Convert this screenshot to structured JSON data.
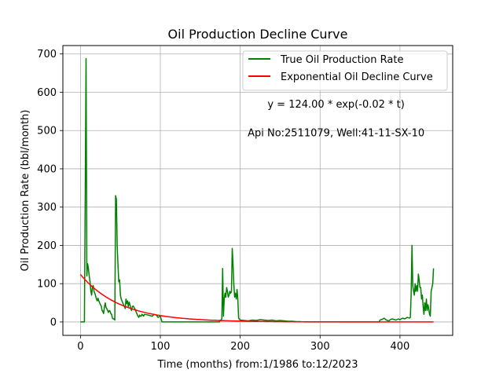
{
  "chart_data": {
    "type": "line",
    "title": "Oil Production Decline Curve",
    "xlabel": "Time (months) from:1/1986 to:12/2023",
    "ylabel": "Oil Production Rate (bbl/month)",
    "xlim": [
      -22,
      466
    ],
    "ylim": [
      -35,
      722
    ],
    "xticks": [
      0,
      100,
      200,
      300,
      400
    ],
    "yticks": [
      0,
      100,
      200,
      300,
      400,
      500,
      600,
      700
    ],
    "grid": true,
    "legend_position": "top-right",
    "annotations": [
      {
        "text": "y = 124.00 * exp(-0.02 * t)",
        "x": 320,
        "y": 570
      },
      {
        "text": "Api No:2511079, Well:41-11-SX-10",
        "x": 320,
        "y": 495
      }
    ],
    "series": [
      {
        "name": "True Oil Production Rate",
        "color": "#008000",
        "points": [
          [
            0,
            0
          ],
          [
            4,
            0
          ],
          [
            5,
            0
          ],
          [
            6,
            350
          ],
          [
            7,
            688
          ],
          [
            8,
            120
          ],
          [
            9,
            152
          ],
          [
            10,
            140
          ],
          [
            11,
            120
          ],
          [
            12,
            105
          ],
          [
            13,
            80
          ],
          [
            14,
            70
          ],
          [
            15,
            92
          ],
          [
            16,
            95
          ],
          [
            17,
            80
          ],
          [
            18,
            75
          ],
          [
            19,
            68
          ],
          [
            20,
            60
          ],
          [
            21,
            55
          ],
          [
            22,
            62
          ],
          [
            23,
            55
          ],
          [
            24,
            50
          ],
          [
            25,
            45
          ],
          [
            26,
            42
          ],
          [
            27,
            30
          ],
          [
            28,
            28
          ],
          [
            29,
            22
          ],
          [
            30,
            40
          ],
          [
            31,
            50
          ],
          [
            32,
            38
          ],
          [
            33,
            35
          ],
          [
            34,
            30
          ],
          [
            35,
            25
          ],
          [
            36,
            30
          ],
          [
            37,
            28
          ],
          [
            38,
            22
          ],
          [
            39,
            20
          ],
          [
            40,
            10
          ],
          [
            41,
            8
          ],
          [
            42,
            8
          ],
          [
            43,
            5
          ],
          [
            44,
            330
          ],
          [
            45,
            320
          ],
          [
            46,
            200
          ],
          [
            47,
            150
          ],
          [
            48,
            105
          ],
          [
            49,
            110
          ],
          [
            50,
            70
          ],
          [
            51,
            60
          ],
          [
            52,
            55
          ],
          [
            53,
            50
          ],
          [
            54,
            45
          ],
          [
            55,
            40
          ],
          [
            56,
            35
          ],
          [
            57,
            60
          ],
          [
            58,
            48
          ],
          [
            59,
            55
          ],
          [
            60,
            40
          ],
          [
            61,
            52
          ],
          [
            62,
            45
          ],
          [
            63,
            35
          ],
          [
            64,
            30
          ],
          [
            65,
            40
          ],
          [
            66,
            42
          ],
          [
            67,
            38
          ],
          [
            68,
            35
          ],
          [
            69,
            30
          ],
          [
            70,
            25
          ],
          [
            71,
            20
          ],
          [
            72,
            15
          ],
          [
            73,
            12
          ],
          [
            74,
            18
          ],
          [
            75,
            15
          ],
          [
            76,
            15
          ],
          [
            77,
            20
          ],
          [
            78,
            18
          ],
          [
            79,
            15
          ],
          [
            80,
            20
          ],
          [
            85,
            18
          ],
          [
            90,
            15
          ],
          [
            92,
            20
          ],
          [
            95,
            18
          ],
          [
            97,
            12
          ],
          [
            100,
            15
          ],
          [
            102,
            0
          ],
          [
            105,
            0
          ],
          [
            150,
            0
          ],
          [
            170,
            0
          ],
          [
            174,
            0
          ],
          [
            175,
            5
          ],
          [
            176,
            3
          ],
          [
            177,
            10
          ],
          [
            178,
            140
          ],
          [
            179,
            15
          ],
          [
            180,
            60
          ],
          [
            181,
            75
          ],
          [
            182,
            65
          ],
          [
            183,
            90
          ],
          [
            184,
            80
          ],
          [
            185,
            65
          ],
          [
            186,
            70
          ],
          [
            187,
            80
          ],
          [
            188,
            75
          ],
          [
            189,
            80
          ],
          [
            190,
            192
          ],
          [
            191,
            150
          ],
          [
            192,
            100
          ],
          [
            193,
            65
          ],
          [
            194,
            75
          ],
          [
            195,
            60
          ],
          [
            196,
            85
          ],
          [
            197,
            60
          ],
          [
            198,
            10
          ],
          [
            200,
            5
          ],
          [
            205,
            4
          ],
          [
            210,
            3
          ],
          [
            215,
            5
          ],
          [
            220,
            4
          ],
          [
            225,
            6
          ],
          [
            230,
            5
          ],
          [
            235,
            4
          ],
          [
            240,
            5
          ],
          [
            245,
            3
          ],
          [
            250,
            4
          ],
          [
            255,
            3
          ],
          [
            260,
            2
          ],
          [
            265,
            2
          ],
          [
            270,
            1
          ],
          [
            275,
            1
          ],
          [
            280,
            0
          ],
          [
            300,
            0
          ],
          [
            350,
            0
          ],
          [
            370,
            0
          ],
          [
            374,
            0
          ],
          [
            375,
            5
          ],
          [
            378,
            7
          ],
          [
            380,
            10
          ],
          [
            383,
            5
          ],
          [
            386,
            3
          ],
          [
            388,
            6
          ],
          [
            390,
            8
          ],
          [
            395,
            5
          ],
          [
            398,
            8
          ],
          [
            400,
            6
          ],
          [
            403,
            10
          ],
          [
            406,
            8
          ],
          [
            409,
            12
          ],
          [
            412,
            10
          ],
          [
            413,
            12
          ],
          [
            414,
            70
          ],
          [
            415,
            200
          ],
          [
            416,
            95
          ],
          [
            417,
            80
          ],
          [
            418,
            70
          ],
          [
            419,
            100
          ],
          [
            420,
            80
          ],
          [
            421,
            95
          ],
          [
            422,
            80
          ],
          [
            423,
            125
          ],
          [
            424,
            110
          ],
          [
            425,
            90
          ],
          [
            426,
            90
          ],
          [
            427,
            60
          ],
          [
            428,
            70
          ],
          [
            429,
            40
          ],
          [
            430,
            20
          ],
          [
            431,
            50
          ],
          [
            432,
            30
          ],
          [
            433,
            60
          ],
          [
            434,
            30
          ],
          [
            435,
            45
          ],
          [
            436,
            35
          ],
          [
            437,
            20
          ],
          [
            438,
            15
          ],
          [
            439,
            80
          ],
          [
            440,
            90
          ],
          [
            441,
            100
          ],
          [
            442,
            140
          ]
        ]
      },
      {
        "name": "Exponential Oil Decline Curve",
        "color": "#ff0000",
        "model": {
          "a": 124.0,
          "b": 0.02,
          "t_min": 0,
          "t_max": 442
        }
      }
    ]
  }
}
